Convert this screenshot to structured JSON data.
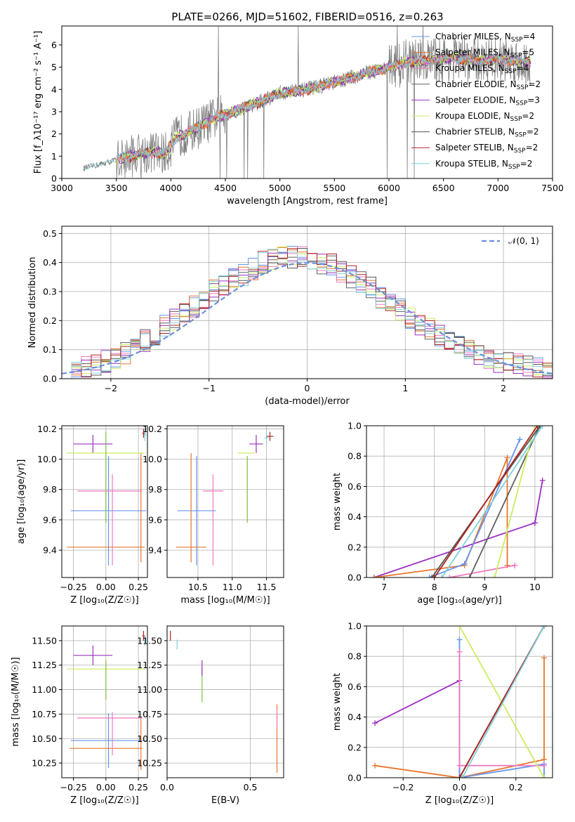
{
  "colors": {
    "model": [
      "#6495ED",
      "#E8762B",
      "#F07AC0",
      "#606060",
      "#9B30C0",
      "#C8EE60",
      "#555555",
      "#B22222",
      "#7FD0D8"
    ],
    "data": "#808080",
    "normal": "#6A8FDB",
    "green": "#7FBF3F"
  },
  "chart_data": [
    {
      "type": "line",
      "title": "PLATE=0266, MJD=51602, FIBERID=0516, z=0.263",
      "xlabel": "wavelength [Angstrom, rest frame]",
      "ylabel": "Flux [f_λ10⁻¹⁷ erg cm⁻² s⁻¹ A⁻¹]",
      "xlim": [
        3000,
        7500
      ],
      "ylim": [
        0,
        6.85
      ],
      "xticks": [
        "3000",
        "3500",
        "4000",
        "4500",
        "5000",
        "5500",
        "6000",
        "6500",
        "7000",
        "7500"
      ],
      "yticks": [
        "0",
        "1",
        "2",
        "3",
        "4",
        "5",
        "6"
      ],
      "legend_position": "upper-right",
      "legend": [
        {
          "name": "Chabrier MILES",
          "n_ssp": "4"
        },
        {
          "name": "Salpeter MILES",
          "n_ssp": "5"
        },
        {
          "name": "Kroupa MILES",
          "n_ssp": "4"
        },
        {
          "name": "Chabrier ELODIE",
          "n_ssp": "2"
        },
        {
          "name": "Salpeter ELODIE",
          "n_ssp": "3"
        },
        {
          "name": "Kroupa ELODIE",
          "n_ssp": "2"
        },
        {
          "name": "Chabrier STELIB",
          "n_ssp": "2"
        },
        {
          "name": "Salpeter STELIB",
          "n_ssp": "2"
        },
        {
          "name": "Kroupa STELIB",
          "n_ssp": "2"
        }
      ],
      "continuum": {
        "x": [
          3200,
          3400,
          3550,
          3700,
          3850,
          3950,
          4050,
          4200,
          4400,
          4600,
          4800,
          5000,
          5200,
          5400,
          5600,
          5800,
          6000,
          6200,
          6400,
          6600,
          6800,
          7000,
          7200,
          7300
        ],
        "y": [
          0.45,
          0.7,
          0.9,
          1.1,
          1.2,
          1.1,
          1.85,
          2.15,
          2.7,
          3.05,
          3.4,
          3.85,
          3.95,
          4.2,
          4.45,
          4.75,
          5.0,
          5.25,
          5.3,
          5.4,
          5.3,
          5.35,
          5.3,
          5.2
        ]
      },
      "wavelength_range": [
        3200,
        7300
      ],
      "models_start": 3500
    },
    {
      "type": "histogram",
      "xlabel": "(data-model)/error",
      "ylabel": "Normed distribution",
      "xlim": [
        -2.5,
        2.5
      ],
      "ylim": [
        0,
        0.525
      ],
      "xticks": [
        "−2",
        "−1",
        "0",
        "1",
        "2"
      ],
      "yticks": [
        "0.0",
        "0.1",
        "0.2",
        "0.3",
        "0.4",
        "0.5"
      ],
      "legend": "𝒩(0, 1)",
      "legend_position": "upper-right",
      "bin_width": 0.1,
      "envelope": [
        0.02,
        0.03,
        0.04,
        0.05,
        0.06,
        0.07,
        0.09,
        0.11,
        0.13,
        0.15,
        0.18,
        0.2,
        0.22,
        0.25,
        0.27,
        0.3,
        0.32,
        0.34,
        0.36,
        0.38,
        0.4,
        0.41,
        0.42,
        0.42,
        0.42,
        0.41,
        0.4,
        0.39,
        0.37,
        0.35,
        0.33,
        0.31,
        0.28,
        0.26,
        0.24,
        0.21,
        0.19,
        0.17,
        0.15,
        0.13,
        0.11,
        0.1,
        0.08,
        0.07,
        0.06,
        0.05,
        0.05,
        0.04,
        0.04,
        0.03
      ]
    },
    {
      "type": "errorbar",
      "xlabel": "Z [log₁₀(Z/Z☉)]",
      "ylabel": "age  [log₁₀(age/yr)]",
      "xlim": [
        -0.34,
        0.32
      ],
      "ylim": [
        9.22,
        10.22
      ],
      "xticks": [
        -0.25,
        0.0,
        0.25
      ],
      "xtick_labels": [
        "−0.25",
        "0.00",
        "0.25"
      ],
      "yticks": [
        9.4,
        9.6,
        9.8,
        10.0,
        10.2
      ],
      "ytick_labels": [
        "9.4",
        "9.6",
        "9.8",
        "10.0",
        "10.2"
      ],
      "points": [
        {
          "c": 0,
          "x": 0.02,
          "y": 9.66,
          "xerr": 0.29,
          "yerr": 0.36
        },
        {
          "c": 1,
          "x": 0.0,
          "y": 9.42,
          "xerr": 0.3,
          "yerr": 0.0
        },
        {
          "c": 1,
          "x": 0.27,
          "y": 9.68,
          "xerr": 0.0,
          "yerr": 0.36
        },
        {
          "c": 2,
          "x": 0.03,
          "y": 9.79,
          "xerr": 0.25,
          "yerr": 0.0
        },
        {
          "c": 2,
          "x": 0.05,
          "y": 9.6,
          "xerr": 0.0,
          "yerr": 0.3
        },
        {
          "c": 4,
          "x": -0.1,
          "y": 10.1,
          "xerr": 0.15,
          "yerr": 0.06
        },
        {
          "c": 5,
          "x": 0.0,
          "y": 10.04,
          "xerr": 0.3,
          "yerr": 0.0
        },
        {
          "c": 9,
          "x": 0.0,
          "y": 9.88,
          "xerr": 0.0,
          "yerr": 0.3
        },
        {
          "c": 8,
          "x": 0.3,
          "y": 10.16,
          "xerr": 0.01,
          "yerr": 0.04
        },
        {
          "c": 7,
          "x": 0.29,
          "y": 10.17,
          "xerr": 0.01,
          "yerr": 0.03
        }
      ]
    },
    {
      "type": "errorbar",
      "xlabel": "mass [log₁₀(M/M☉)]",
      "ylabel": "",
      "xlim": [
        10.05,
        11.75
      ],
      "ylim": [
        9.22,
        10.22
      ],
      "xticks": [
        10.5,
        11.0,
        11.5
      ],
      "xtick_labels": [
        "10.5",
        "11.0",
        "11.5"
      ],
      "yticks": [
        9.4,
        9.6,
        9.8,
        10.0,
        10.2
      ],
      "ytick_labels": [
        "9.4",
        "9.6",
        "9.8",
        "10.0",
        "10.2"
      ],
      "points": [
        {
          "c": 0,
          "x": 10.48,
          "y": 9.66,
          "xerr": 0.28,
          "yerr": 0.36
        },
        {
          "c": 1,
          "x": 10.4,
          "y": 9.42,
          "xerr": 0.22,
          "yerr": 0.0
        },
        {
          "c": 1,
          "x": 10.4,
          "y": 9.68,
          "xerr": 0.0,
          "yerr": 0.36
        },
        {
          "c": 2,
          "x": 10.72,
          "y": 9.79,
          "xerr": 0.15,
          "yerr": 0.0
        },
        {
          "c": 2,
          "x": 10.72,
          "y": 9.6,
          "xerr": 0.0,
          "yerr": 0.3
        },
        {
          "c": 4,
          "x": 11.35,
          "y": 10.1,
          "xerr": 0.1,
          "yerr": 0.06
        },
        {
          "c": 5,
          "x": 11.2,
          "y": 10.04,
          "xerr": 0.12,
          "yerr": 0.0
        },
        {
          "c": 9,
          "x": 11.22,
          "y": 9.8,
          "xerr": 0.0,
          "yerr": 0.22
        },
        {
          "c": 8,
          "x": 11.5,
          "y": 10.14,
          "xerr": 0.03,
          "yerr": 0.04
        },
        {
          "c": 7,
          "x": 11.55,
          "y": 10.15,
          "xerr": 0.05,
          "yerr": 0.03
        }
      ]
    },
    {
      "type": "line",
      "xlabel": "age  [log₁₀(age/yr)]",
      "ylabel": "mass weight",
      "xlim": [
        6.65,
        10.35
      ],
      "ylim": [
        0,
        1
      ],
      "xticks": [
        7,
        8,
        9,
        10
      ],
      "xtick_labels": [
        "7",
        "8",
        "9",
        "10"
      ],
      "yticks": [
        0,
        0.2,
        0.4,
        0.6,
        0.8,
        1.0
      ],
      "ytick_labels": [
        "0.0",
        "0.2",
        "0.4",
        "0.6",
        "0.8",
        "1.0"
      ],
      "series": [
        {
          "c": 4,
          "x": [
            6.8,
            10.0,
            10.0,
            10.15
          ],
          "y": [
            0.0,
            0.36,
            0.36,
            0.64
          ]
        },
        {
          "c": 1,
          "x": [
            6.8,
            8.6,
            9.45,
            9.45
          ],
          "y": [
            0.0,
            0.08,
            0.79,
            0.08
          ]
        },
        {
          "c": 0,
          "x": [
            7.9,
            8.6,
            9.7
          ],
          "y": [
            0.0,
            0.09,
            0.91
          ]
        },
        {
          "c": 2,
          "x": [
            8.3,
            9.6,
            9.6
          ],
          "y": [
            0.0,
            0.08,
            0.08
          ]
        },
        {
          "c": 3,
          "x": [
            8.7,
            10.1
          ],
          "y": [
            0.0,
            1.0
          ]
        },
        {
          "c": 5,
          "x": [
            9.2,
            10.0
          ],
          "y": [
            0.0,
            1.0
          ]
        },
        {
          "c": 6,
          "x": [
            7.95,
            10.1
          ],
          "y": [
            0.0,
            1.0
          ]
        },
        {
          "c": 7,
          "x": [
            8.0,
            10.05
          ],
          "y": [
            0.0,
            1.0
          ]
        },
        {
          "c": 8,
          "x": [
            8.15,
            10.15
          ],
          "y": [
            0.0,
            1.0
          ]
        }
      ]
    },
    {
      "type": "errorbar",
      "xlabel": "Z [log₁₀(Z/Z☉)]",
      "ylabel": "mass [log₁₀(M/M☉)]",
      "xlim": [
        -0.34,
        0.32
      ],
      "ylim": [
        10.1,
        11.65
      ],
      "xticks": [
        -0.25,
        0.0,
        0.25
      ],
      "xtick_labels": [
        "−0.25",
        "0.00",
        "0.25"
      ],
      "yticks": [
        10.25,
        10.5,
        10.75,
        11.0,
        11.25,
        11.5
      ],
      "ytick_labels": [
        "10.25",
        "10.50",
        "10.75",
        "11.00",
        "11.25",
        "11.50"
      ],
      "points": [
        {
          "c": 0,
          "x": 0.02,
          "y": 10.48,
          "xerr": 0.29,
          "yerr": 0.28
        },
        {
          "c": 1,
          "x": 0.0,
          "y": 10.4,
          "xerr": 0.28,
          "yerr": 0.0
        },
        {
          "c": 1,
          "x": 0.27,
          "y": 10.45,
          "xerr": 0.0,
          "yerr": 0.27
        },
        {
          "c": 2,
          "x": 0.03,
          "y": 10.71,
          "xerr": 0.25,
          "yerr": 0.0
        },
        {
          "c": 2,
          "x": 0.05,
          "y": 10.55,
          "xerr": 0.0,
          "yerr": 0.22
        },
        {
          "c": 4,
          "x": -0.1,
          "y": 11.35,
          "xerr": 0.15,
          "yerr": 0.1
        },
        {
          "c": 5,
          "x": 0.0,
          "y": 11.21,
          "xerr": 0.3,
          "yerr": 0.0
        },
        {
          "c": 9,
          "x": 0.0,
          "y": 11.1,
          "xerr": 0.0,
          "yerr": 0.2
        },
        {
          "c": 8,
          "x": 0.3,
          "y": 11.5,
          "xerr": 0.01,
          "yerr": 0.05
        },
        {
          "c": 7,
          "x": 0.29,
          "y": 11.55,
          "xerr": 0.01,
          "yerr": 0.05
        }
      ]
    },
    {
      "type": "errorbar",
      "xlabel": "E(B-V)",
      "ylabel": "",
      "xlim": [
        0.0,
        0.7
      ],
      "ylim": [
        10.1,
        11.65
      ],
      "xticks": [
        0.0,
        0.5
      ],
      "xtick_labels": [
        "0.0",
        "0.5"
      ],
      "yticks": [
        10.25,
        10.5,
        10.75,
        11.0,
        11.25,
        11.5
      ],
      "ytick_labels": [
        "10.25",
        "10.50",
        "10.75",
        "11.00",
        "11.25",
        "11.50"
      ],
      "points": [
        {
          "c": 1,
          "x": 0.66,
          "y": 10.5,
          "xerr": 0.0,
          "yerr": 0.35
        },
        {
          "c": 2,
          "x": 0.66,
          "y": 10.7,
          "xerr": 0.0,
          "yerr": 0.1
        },
        {
          "c": 9,
          "x": 0.21,
          "y": 11.05,
          "xerr": 0.0,
          "yerr": 0.18
        },
        {
          "c": 4,
          "x": 0.21,
          "y": 11.22,
          "xerr": 0.0,
          "yerr": 0.08
        },
        {
          "c": 8,
          "x": 0.06,
          "y": 11.46,
          "xerr": 0.0,
          "yerr": 0.05
        },
        {
          "c": 7,
          "x": 0.02,
          "y": 11.55,
          "xerr": 0.0,
          "yerr": 0.05
        }
      ]
    },
    {
      "type": "line",
      "xlabel": "Z [log₁₀(Z/Z☉)]",
      "ylabel": "mass weight",
      "xlim": [
        -0.33,
        0.33
      ],
      "ylim": [
        0,
        1
      ],
      "xticks": [
        -0.2,
        0.0,
        0.2
      ],
      "xtick_labels": [
        "−0.2",
        "0.0",
        "0.2"
      ],
      "yticks": [
        0,
        0.2,
        0.4,
        0.6,
        0.8,
        1.0
      ],
      "ytick_labels": [
        "0.0",
        "0.2",
        "0.4",
        "0.6",
        "0.8",
        "1.0"
      ],
      "series": [
        {
          "c": 4,
          "x": [
            -0.3,
            0.0,
            0.0
          ],
          "y": [
            0.36,
            0.64,
            0.0
          ]
        },
        {
          "c": 1,
          "x": [
            -0.3,
            0.0,
            0.3,
            0.3
          ],
          "y": [
            0.08,
            0.0,
            0.12,
            0.79
          ]
        },
        {
          "c": 0,
          "x": [
            0.0,
            0.0,
            0.3,
            0.3
          ],
          "y": [
            0.91,
            0.0,
            0.09,
            0.0
          ]
        },
        {
          "c": 2,
          "x": [
            0.0,
            0.0,
            0.3
          ],
          "y": [
            0.83,
            0.08,
            0.08
          ]
        },
        {
          "c": 5,
          "x": [
            0.0,
            0.3
          ],
          "y": [
            1.0,
            0.0
          ]
        },
        {
          "c": 3,
          "x": [
            0.0,
            0.3
          ],
          "y": [
            0.0,
            1.0
          ]
        },
        {
          "c": 6,
          "x": [
            0.0,
            0.3
          ],
          "y": [
            0.0,
            1.0
          ]
        },
        {
          "c": 7,
          "x": [
            0.0,
            0.3
          ],
          "y": [
            0.0,
            1.0
          ]
        },
        {
          "c": 8,
          "x": [
            0.01,
            0.3
          ],
          "y": [
            0.0,
            1.0
          ]
        }
      ]
    }
  ]
}
